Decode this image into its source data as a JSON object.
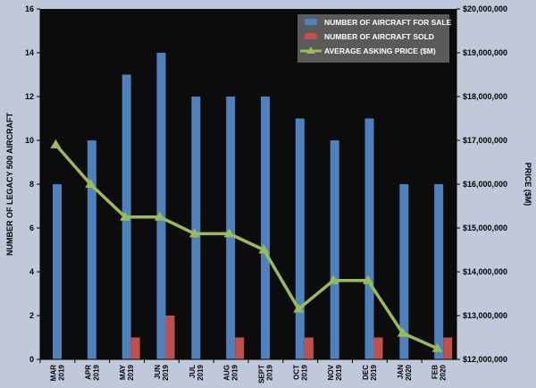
{
  "chart_data": {
    "type": "bar",
    "categories": [
      [
        "MAR",
        "2019"
      ],
      [
        "APR",
        "2019"
      ],
      [
        "MAY",
        "2019"
      ],
      [
        "JUN",
        "2019"
      ],
      [
        "JUL",
        "2019"
      ],
      [
        "AUG",
        "2019"
      ],
      [
        "SEPT",
        "2019"
      ],
      [
        "OCT",
        "2019"
      ],
      [
        "NOV",
        "2019"
      ],
      [
        "DEC",
        "2019"
      ],
      [
        "JAN",
        "2020"
      ],
      [
        "FEB",
        "2020"
      ]
    ],
    "series": [
      {
        "name": "NUMBER OF AIRCRAFT FOR SALE",
        "kind": "bar",
        "axis": "left",
        "color": "#4f81bd",
        "values": [
          8,
          10,
          13,
          14,
          12,
          12,
          12,
          11,
          10,
          11,
          8,
          8
        ]
      },
      {
        "name": "NUMBER OF AIRCRAFT SOLD",
        "kind": "bar",
        "axis": "left",
        "color": "#c0504d",
        "values": [
          0,
          0,
          1,
          2,
          0,
          1,
          0,
          1,
          0,
          1,
          0,
          1
        ]
      },
      {
        "name": "AVERAGE ASKING PRICE ($M)",
        "kind": "line",
        "axis": "right",
        "color": "#9bbb59",
        "values": [
          16900000,
          16000000,
          15250000,
          15250000,
          14870000,
          14870000,
          14500000,
          13150000,
          13800000,
          13800000,
          12600000,
          12250000
        ]
      }
    ],
    "ylabel": "NUMBER OF LEGACY 500 AIRCRAFT",
    "ylabel_right": "PRICE ($M)",
    "ylim": [
      0,
      16
    ],
    "yticks": [
      "0",
      "2",
      "4",
      "6",
      "8",
      "10",
      "12",
      "14",
      "16"
    ],
    "ylim_right": [
      12000000,
      20000000
    ],
    "yticks_right": [
      "$12,000,000",
      "$13,000,000",
      "$14,000,000",
      "$15,000,000",
      "$16,000,000",
      "$17,000,000",
      "$18,000,000",
      "$19,000,000",
      "$20,000,000"
    ],
    "legend_position": "top-right",
    "plot_background": "#0c0c0c",
    "grid": false
  }
}
